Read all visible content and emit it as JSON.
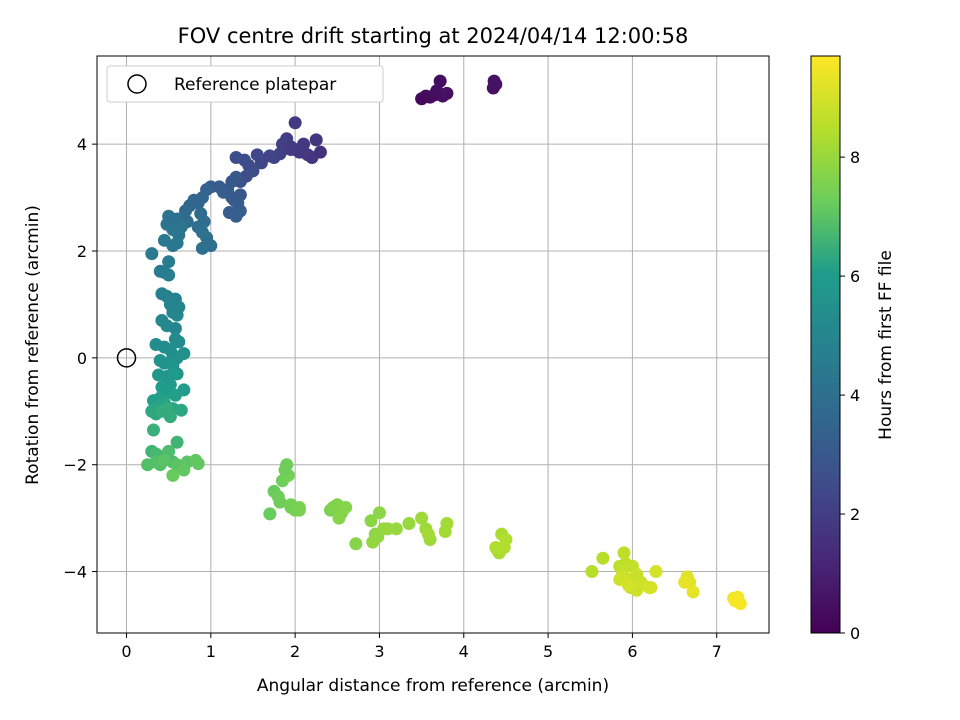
{
  "chart_data": {
    "type": "scatter",
    "title": "FOV centre drift starting at 2024/04/14 12:00:58",
    "xlabel": "Angular distance from reference (arcmin)",
    "ylabel": "Rotation from reference (arcmin)",
    "colorbar_label": "Hours from first FF file",
    "xlim": [
      -0.35,
      7.62
    ],
    "ylim": [
      -5.15,
      5.65
    ],
    "x_ticks": [
      0,
      1,
      2,
      3,
      4,
      5,
      6,
      7
    ],
    "y_ticks": [
      -4,
      -2,
      0,
      2,
      4
    ],
    "colorbar_range": [
      0,
      9.7
    ],
    "colorbar_ticks": [
      0,
      2,
      4,
      6,
      8
    ],
    "colormap": "viridis",
    "grid": true,
    "legend": {
      "position": "top-left",
      "entries": [
        {
          "label": "Reference platepar",
          "marker": "open-circle",
          "x": 0,
          "y": 0
        }
      ]
    },
    "series": [
      {
        "x": [
          3.5,
          3.55,
          3.6,
          3.65,
          3.7,
          3.75,
          3.72,
          3.68,
          3.8,
          4.35,
          4.38,
          4.36
        ],
        "y": [
          4.85,
          4.9,
          4.88,
          4.92,
          4.95,
          4.9,
          5.18,
          5.0,
          4.95,
          5.05,
          5.12,
          5.18
        ],
        "h": [
          0.3,
          0.3,
          0.35,
          0.35,
          0.4,
          0.4,
          0.45,
          0.45,
          0.5,
          0.5,
          0.55,
          0.55
        ]
      },
      {
        "x": [
          1.3,
          1.4,
          1.45,
          1.55,
          1.6,
          1.75,
          1.85,
          1.9,
          1.95,
          2.0,
          2.05,
          2.1,
          2.15,
          2.2,
          2.25,
          2.3,
          1.88,
          2.0,
          2.1,
          1.95,
          1.82,
          1.7,
          1.5,
          1.42,
          1.35
        ],
        "y": [
          3.75,
          3.7,
          3.6,
          3.8,
          3.65,
          3.75,
          4.0,
          4.1,
          3.9,
          4.4,
          3.85,
          4.0,
          3.8,
          3.75,
          4.08,
          3.85,
          3.92,
          3.9,
          3.85,
          3.95,
          3.82,
          3.78,
          3.5,
          3.4,
          3.3
        ],
        "h": [
          2.6,
          2.6,
          2.5,
          2.4,
          2.3,
          2.2,
          2.1,
          2.0,
          2.0,
          1.9,
          1.9,
          1.8,
          1.8,
          1.7,
          1.7,
          1.6,
          2.0,
          1.9,
          1.8,
          1.9,
          2.1,
          2.2,
          2.5,
          2.6,
          2.7
        ]
      },
      {
        "x": [
          1.0,
          1.1,
          1.2,
          1.25,
          1.3,
          1.35,
          1.28,
          1.22,
          1.3,
          1.35,
          1.32,
          1.25,
          1.15,
          0.95,
          0.9,
          0.85,
          0.8,
          0.75,
          0.7,
          0.68,
          0.72,
          0.85,
          0.92,
          0.88,
          0.9,
          1.0,
          0.95,
          0.9,
          0.6,
          0.55,
          0.5,
          0.48,
          0.55,
          0.62,
          0.65,
          0.6,
          0.55,
          0.45,
          0.3,
          0.4,
          0.5,
          0.45,
          0.5
        ],
        "y": [
          3.2,
          3.2,
          3.15,
          3.3,
          3.38,
          3.05,
          2.95,
          2.72,
          2.65,
          2.75,
          2.9,
          3.0,
          3.1,
          3.15,
          3.0,
          2.9,
          2.95,
          2.85,
          2.75,
          2.6,
          2.55,
          2.45,
          2.55,
          2.7,
          2.35,
          2.1,
          2.25,
          2.05,
          2.6,
          2.55,
          2.65,
          2.5,
          2.4,
          2.3,
          2.45,
          2.15,
          2.1,
          2.2,
          1.95,
          1.62,
          1.8,
          1.6,
          1.55
        ],
        "h": [
          3.2,
          3.2,
          3.1,
          3.0,
          3.0,
          3.0,
          3.1,
          3.2,
          3.3,
          3.3,
          3.2,
          3.1,
          3.2,
          3.4,
          3.5,
          3.5,
          3.6,
          3.6,
          3.7,
          3.8,
          3.8,
          3.9,
          3.9,
          3.8,
          4.0,
          4.0,
          4.0,
          4.0,
          4.0,
          4.1,
          4.1,
          4.1,
          4.2,
          4.2,
          4.2,
          4.3,
          4.3,
          4.3,
          4.4,
          4.5,
          4.5,
          4.5,
          4.6
        ]
      },
      {
        "x": [
          0.42,
          0.48,
          0.52,
          0.58,
          0.62,
          0.55,
          0.6,
          0.58,
          0.42,
          0.48,
          0.58,
          0.62,
          0.35,
          0.45,
          0.52,
          0.55,
          0.68,
          0.6,
          0.4,
          0.45,
          0.55,
          0.6,
          0.38,
          0.48,
          0.55,
          0.52,
          0.68,
          0.42,
          0.5,
          0.58,
          0.4,
          0.32,
          0.45,
          0.38,
          0.55,
          0.65,
          0.3,
          0.35,
          0.42,
          0.48,
          0.52,
          0.32
        ],
        "y": [
          1.2,
          1.15,
          1.0,
          1.1,
          0.95,
          0.85,
          0.8,
          0.55,
          0.7,
          0.6,
          0.35,
          0.3,
          0.25,
          0.2,
          0.15,
          0.05,
          0.08,
          0.0,
          -0.05,
          -0.1,
          -0.15,
          -0.3,
          -0.32,
          -0.35,
          -0.3,
          -0.5,
          -0.6,
          -0.55,
          -0.65,
          -0.7,
          -0.75,
          -0.8,
          -0.85,
          -0.9,
          -0.95,
          -0.98,
          -1.0,
          -1.05,
          -1.0,
          -0.95,
          -1.1,
          -1.35
        ],
        "h": [
          4.7,
          4.7,
          4.8,
          4.8,
          4.9,
          4.9,
          5.0,
          5.0,
          5.1,
          5.1,
          5.2,
          5.2,
          5.3,
          5.3,
          5.4,
          5.4,
          5.5,
          5.5,
          5.6,
          5.6,
          5.7,
          5.7,
          5.8,
          5.8,
          5.9,
          5.9,
          6.0,
          6.0,
          6.0,
          6.1,
          6.1,
          6.1,
          6.2,
          6.2,
          6.2,
          6.3,
          6.3,
          6.3,
          6.4,
          6.4,
          6.4,
          6.5
        ]
      },
      {
        "x": [
          0.6,
          0.3,
          0.35,
          0.42,
          0.5,
          0.48,
          0.55,
          0.4,
          0.25,
          0.35,
          0.45,
          0.6,
          0.72,
          0.82,
          0.85,
          0.68,
          0.55
        ],
        "y": [
          -1.58,
          -1.75,
          -1.8,
          -1.85,
          -1.75,
          -1.9,
          -1.95,
          -2.0,
          -2.0,
          -1.95,
          -1.92,
          -2.0,
          -1.95,
          -1.92,
          -1.98,
          -2.1,
          -2.2
        ],
        "h": [
          6.6,
          6.6,
          6.7,
          6.7,
          6.8,
          6.8,
          6.8,
          6.9,
          6.9,
          6.9,
          7.0,
          7.0,
          7.0,
          7.1,
          7.1,
          7.1,
          7.2
        ]
      },
      {
        "x": [
          1.7,
          1.75,
          1.8,
          1.85,
          1.9,
          1.92,
          1.95,
          2.0,
          2.05,
          1.88,
          1.82,
          1.95,
          2.05,
          2.42,
          2.5,
          2.55,
          2.45,
          2.6,
          2.52,
          2.72,
          2.9,
          2.95,
          3.0,
          2.92,
          3.05,
          2.98,
          3.1,
          3.2,
          3.35,
          3.5,
          3.55,
          3.6,
          3.58,
          3.78,
          3.8,
          4.4,
          4.45,
          4.42,
          4.48,
          4.38,
          4.5
        ],
        "y": [
          -2.92,
          -2.5,
          -2.6,
          -2.3,
          -2.0,
          -2.2,
          -2.8,
          -2.85,
          -2.8,
          -2.1,
          -2.7,
          -2.75,
          -2.85,
          -2.85,
          -2.75,
          -2.9,
          -2.8,
          -2.8,
          -3.0,
          -3.48,
          -3.05,
          -3.3,
          -2.9,
          -3.45,
          -3.2,
          -3.35,
          -3.2,
          -3.2,
          -3.1,
          -3.0,
          -3.2,
          -3.4,
          -3.3,
          -3.25,
          -3.1,
          -3.6,
          -3.3,
          -3.65,
          -3.55,
          -3.55,
          -3.4
        ],
        "h": [
          7.2,
          7.2,
          7.3,
          7.3,
          7.3,
          7.4,
          7.4,
          7.4,
          7.5,
          7.3,
          7.3,
          7.4,
          7.5,
          7.5,
          7.6,
          7.6,
          7.6,
          7.7,
          7.7,
          7.7,
          7.8,
          7.8,
          7.8,
          7.9,
          7.9,
          7.9,
          8.0,
          8.0,
          8.0,
          8.1,
          8.1,
          8.1,
          8.2,
          8.2,
          8.2,
          8.3,
          8.3,
          8.3,
          8.4,
          8.4,
          8.4
        ]
      },
      {
        "x": [
          5.52,
          5.65,
          5.85,
          5.9,
          5.92,
          5.88,
          6.0,
          5.95,
          6.05,
          5.98,
          6.1,
          5.9,
          6.05,
          6.12,
          6.2,
          6.28,
          6.22,
          5.85,
          5.95,
          6.65,
          6.68,
          6.62,
          6.72,
          7.2,
          7.25,
          7.28,
          7.22
        ],
        "y": [
          -4.0,
          -3.75,
          -3.9,
          -3.65,
          -3.85,
          -4.0,
          -3.9,
          -4.15,
          -4.05,
          -4.3,
          -4.2,
          -4.1,
          -4.35,
          -4.25,
          -4.3,
          -4.0,
          -4.3,
          -4.15,
          -4.25,
          -4.1,
          -4.2,
          -4.2,
          -4.38,
          -4.5,
          -4.48,
          -4.6,
          -4.55
        ],
        "h": [
          8.5,
          8.5,
          8.6,
          8.6,
          8.6,
          8.7,
          8.7,
          8.7,
          8.8,
          8.8,
          8.8,
          8.9,
          8.9,
          8.9,
          9.0,
          9.0,
          9.0,
          8.9,
          9.0,
          9.2,
          9.2,
          9.3,
          9.3,
          9.5,
          9.5,
          9.6,
          9.6
        ]
      }
    ]
  }
}
